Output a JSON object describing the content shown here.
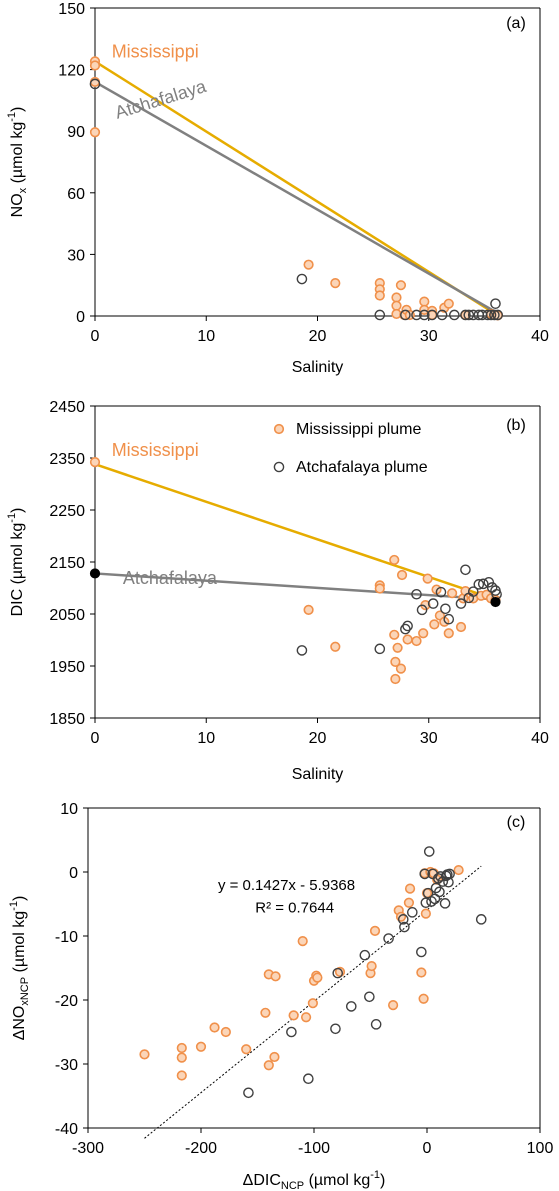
{
  "colors": {
    "mississippi_line": "#E6AC00",
    "mississippi_marker_edge": "#F0904A",
    "mississippi_marker_fill": "#FBD5B8",
    "mississippi_label": "#F0904A",
    "atchafalaya_line": "#808080",
    "atchafalaya_marker_edge": "#404040",
    "atchafalaya_label": "#808080",
    "axis": "#000000",
    "trend": "#000000"
  },
  "chart_data": [
    {
      "id": "a",
      "type": "scatter",
      "panel_label": "(a)",
      "xlabel": "Salinity",
      "ylabel_main": "NO",
      "ylabel_sub": "x",
      "ylabel_unit": " (µmol kg",
      "ylabel_sup": "-1",
      "ylabel_close": ")",
      "xlim": [
        0,
        40
      ],
      "ylim": [
        0,
        150
      ],
      "xticks": [
        0,
        10,
        20,
        30,
        40
      ],
      "yticks": [
        0,
        30,
        60,
        90,
        120,
        150
      ],
      "annotations": [
        {
          "text": "Mississippi",
          "x": 1.5,
          "y": 126,
          "color_key": "mississippi_label",
          "rotation": 0
        },
        {
          "text": "Atchafalaya",
          "x": 2.0,
          "y": 96,
          "color_key": "atchafalaya_label",
          "rotation": -17
        }
      ],
      "lines": [
        {
          "series": "Mississippi",
          "color_key": "mississippi_line",
          "x": [
            0,
            36
          ],
          "y": [
            124,
            1
          ]
        },
        {
          "series": "Atchafalaya",
          "color_key": "atchafalaya_line",
          "x": [
            0,
            36
          ],
          "y": [
            114,
            2
          ]
        }
      ],
      "series": [
        {
          "name": "Mississippi",
          "style": "miss",
          "points": [
            [
              0,
              124
            ],
            [
              0,
              122
            ],
            [
              0,
              114
            ],
            [
              0,
              89.5
            ],
            [
              19.2,
              25
            ],
            [
              21.6,
              16
            ],
            [
              25.6,
              16
            ],
            [
              25.6,
              13
            ],
            [
              25.6,
              10
            ],
            [
              27.1,
              9
            ],
            [
              27.1,
              5
            ],
            [
              27.1,
              1
            ],
            [
              27.5,
              15
            ],
            [
              27.8,
              0.5
            ],
            [
              28,
              3
            ],
            [
              28.3,
              0.5
            ],
            [
              29.6,
              7
            ],
            [
              29.6,
              3
            ],
            [
              30.3,
              2.5
            ],
            [
              30.3,
              0.5
            ],
            [
              31.4,
              4
            ],
            [
              31.8,
              6
            ],
            [
              33.3,
              0.5
            ],
            [
              35.6,
              1
            ],
            [
              35.9,
              0.5
            ],
            [
              36.2,
              0.3
            ]
          ]
        },
        {
          "name": "Atchafalaya",
          "style": "atch",
          "points": [
            [
              0,
              113
            ],
            [
              18.6,
              18
            ],
            [
              25.6,
              0.5
            ],
            [
              27.9,
              0.5
            ],
            [
              28.9,
              0.5
            ],
            [
              29.6,
              0.5
            ],
            [
              30.3,
              0.5
            ],
            [
              31.2,
              0.5
            ],
            [
              32.3,
              0.5
            ],
            [
              33.3,
              0.5
            ],
            [
              33.6,
              0.5
            ],
            [
              34,
              0.5
            ],
            [
              34.5,
              0.5
            ],
            [
              34.8,
              0.5
            ],
            [
              35.3,
              0.5
            ],
            [
              35.6,
              0.5
            ],
            [
              35.9,
              0.5
            ],
            [
              36,
              6
            ],
            [
              36.2,
              0.5
            ]
          ]
        }
      ]
    },
    {
      "id": "b",
      "type": "scatter",
      "panel_label": "(b)",
      "xlabel": "Salinity",
      "ylabel_main": "DIC (µmol kg",
      "ylabel_sup": "-1",
      "ylabel_close": ")",
      "xlim": [
        0,
        40
      ],
      "ylim": [
        1850,
        2450
      ],
      "xticks": [
        0,
        10,
        20,
        30,
        40
      ],
      "yticks": [
        1850,
        1950,
        2050,
        2150,
        2250,
        2350,
        2450
      ],
      "legend": {
        "placement": "top-right",
        "entries": [
          {
            "label": "Mississippi plume",
            "style": "miss"
          },
          {
            "label": "Atchafalaya plume",
            "style": "atch"
          }
        ]
      },
      "annotations": [
        {
          "text": "Mississippi",
          "x": 1.5,
          "y": 2354,
          "color_key": "mississippi_label",
          "rotation": 0
        },
        {
          "text": "Atchafalaya",
          "x": 2.5,
          "y": 2108,
          "color_key": "atchafalaya_label",
          "rotation": 0
        }
      ],
      "lines": [
        {
          "series": "Mississippi",
          "color_key": "mississippi_line",
          "x": [
            0,
            36
          ],
          "y": [
            2338,
            2078
          ]
        },
        {
          "series": "Atchafalaya",
          "color_key": "atchafalaya_line",
          "x": [
            0,
            36
          ],
          "y": [
            2128,
            2078
          ]
        }
      ],
      "endpoints": [
        {
          "x": 0,
          "y": 2128
        },
        {
          "x": 36,
          "y": 2073
        }
      ],
      "series": [
        {
          "name": "Mississippi plume",
          "style": "miss",
          "points": [
            [
              0,
              2342
            ],
            [
              19.2,
              2058
            ],
            [
              21.6,
              1987
            ],
            [
              25.6,
              2105
            ],
            [
              25.6,
              2099
            ],
            [
              26.9,
              2154
            ],
            [
              26.9,
              2010
            ],
            [
              27,
              1958
            ],
            [
              27,
              1925
            ],
            [
              27.2,
              1985
            ],
            [
              27.5,
              1945
            ],
            [
              27.6,
              2125
            ],
            [
              28.1,
              2001
            ],
            [
              28.9,
              1998
            ],
            [
              29.5,
              2013
            ],
            [
              29.7,
              2067
            ],
            [
              29.9,
              2118
            ],
            [
              30.5,
              2030
            ],
            [
              30.7,
              2097
            ],
            [
              31,
              2047
            ],
            [
              31.4,
              2035
            ],
            [
              31.8,
              2013
            ],
            [
              32.1,
              2090
            ],
            [
              32.9,
              2025
            ],
            [
              33.1,
              2080
            ],
            [
              33.3,
              2094
            ],
            [
              34,
              2080
            ],
            [
              34.7,
              2085
            ],
            [
              35.2,
              2087
            ],
            [
              35.6,
              2080
            ],
            [
              36,
              2077
            ]
          ]
        },
        {
          "name": "Atchafalaya plume",
          "style": "atch",
          "points": [
            [
              18.6,
              1980
            ],
            [
              25.6,
              1983
            ],
            [
              27.9,
              2021
            ],
            [
              28.1,
              2027
            ],
            [
              28.9,
              2088
            ],
            [
              29.4,
              2058
            ],
            [
              30.4,
              2070
            ],
            [
              31.1,
              2092
            ],
            [
              31.5,
              2060
            ],
            [
              31.8,
              2040
            ],
            [
              32.9,
              2070
            ],
            [
              33.3,
              2135
            ],
            [
              33.6,
              2081
            ],
            [
              34,
              2093
            ],
            [
              34.5,
              2107
            ],
            [
              34.9,
              2108
            ],
            [
              35.4,
              2111
            ],
            [
              35.7,
              2101
            ],
            [
              36,
              2095
            ],
            [
              36.1,
              2088
            ]
          ]
        }
      ]
    },
    {
      "id": "c",
      "type": "scatter",
      "panel_label": "(c)",
      "xlabel_main": "ΔDIC",
      "xlabel_sub": "NCP",
      "xlabel_unit": " (µmol kg",
      "xlabel_sup": "-1",
      "xlabel_close": ")",
      "ylabel_main": "ΔNO",
      "ylabel_sub": "xNCP",
      "ylabel_unit": " (µmol kg",
      "ylabel_sup": "-1",
      "ylabel_close": ")",
      "xlim": [
        -300,
        100
      ],
      "ylim": [
        -40,
        10
      ],
      "xticks": [
        -300,
        -200,
        -100,
        0,
        100
      ],
      "yticks": [
        -40,
        -30,
        -20,
        -10,
        0,
        10
      ],
      "equation": "y = 0.1427x - 5.9368",
      "r_squared": "R² = 0.7644",
      "trendline": {
        "slope": 0.1427,
        "intercept": -5.9368,
        "x_range": [
          -250,
          48
        ]
      },
      "series": [
        {
          "name": "Mississippi plume",
          "style": "miss",
          "points": [
            [
              -250,
              -28.5
            ],
            [
              -217,
              -27.5
            ],
            [
              -217,
              -29
            ],
            [
              -217,
              -31.8
            ],
            [
              -200,
              -27.3
            ],
            [
              -188,
              -24.3
            ],
            [
              -178,
              -25
            ],
            [
              -160,
              -27.7
            ],
            [
              -143,
              -22
            ],
            [
              -140,
              -30.2
            ],
            [
              -140,
              -16
            ],
            [
              -135,
              -28.9
            ],
            [
              -134,
              -16.3
            ],
            [
              -118,
              -22.4
            ],
            [
              -110,
              -10.8
            ],
            [
              -107,
              -22.7
            ],
            [
              -101,
              -20.5
            ],
            [
              -100,
              -17
            ],
            [
              -98,
              -16.2
            ],
            [
              -97,
              -16.5
            ],
            [
              -77,
              -15.6
            ],
            [
              -50,
              -15.8
            ],
            [
              -49,
              -14.7
            ],
            [
              -46,
              -9.2
            ],
            [
              -30,
              -20.8
            ],
            [
              -25,
              -6
            ],
            [
              -23,
              -7
            ],
            [
              -16,
              -4.8
            ],
            [
              -15,
              -2.6
            ],
            [
              -5,
              -15.7
            ],
            [
              -3,
              -19.8
            ],
            [
              -2,
              -0.2
            ],
            [
              -1,
              -6.5
            ],
            [
              0,
              -3.3
            ],
            [
              3,
              0
            ],
            [
              6,
              -0.2
            ],
            [
              9,
              -1.2
            ],
            [
              28,
              0.3
            ]
          ]
        },
        {
          "name": "Atchafalaya plume",
          "style": "atch",
          "points": [
            [
              -158,
              -34.5
            ],
            [
              -120,
              -25
            ],
            [
              -105,
              -32.3
            ],
            [
              -81,
              -24.5
            ],
            [
              -79,
              -15.8
            ],
            [
              -67,
              -21
            ],
            [
              -55,
              -13
            ],
            [
              -51,
              -19.5
            ],
            [
              -45,
              -23.8
            ],
            [
              -34,
              -10.4
            ],
            [
              -21,
              -7.4
            ],
            [
              -20,
              -8.6
            ],
            [
              -13,
              -6.3
            ],
            [
              -5,
              -12.5
            ],
            [
              -2,
              -0.3
            ],
            [
              -1,
              -4.8
            ],
            [
              1,
              -3.3
            ],
            [
              2,
              3.2
            ],
            [
              4,
              -4.6
            ],
            [
              5,
              -0.3
            ],
            [
              7,
              -4.2
            ],
            [
              8,
              -2.5
            ],
            [
              10,
              -1
            ],
            [
              11,
              -3.1
            ],
            [
              12,
              -0.7
            ],
            [
              14,
              -1.5
            ],
            [
              16,
              -4.9
            ],
            [
              17,
              -0.6
            ],
            [
              18,
              -0.4
            ],
            [
              19,
              -1.6
            ],
            [
              20,
              -0.3
            ],
            [
              48,
              -7.4
            ]
          ]
        }
      ]
    }
  ]
}
